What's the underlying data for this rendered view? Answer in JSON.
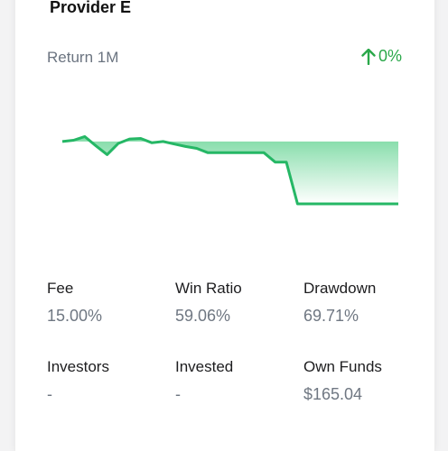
{
  "provider": {
    "name": "Provider E"
  },
  "return": {
    "label": "Return 1M",
    "value": "0%",
    "direction_icon": "arrow-up-icon",
    "color": "#2aa84a"
  },
  "chart_data": {
    "type": "area",
    "x": [
      0,
      1,
      2,
      3,
      4,
      5,
      6,
      7,
      8,
      9,
      10,
      11,
      12,
      13,
      14,
      15,
      16,
      17,
      18,
      19,
      20,
      21,
      22,
      23,
      24,
      25,
      26,
      27,
      28,
      29,
      30
    ],
    "y": [
      1.0,
      1.02,
      1.08,
      0.93,
      0.79,
      0.97,
      1.04,
      1.05,
      0.98,
      1.0,
      0.96,
      0.92,
      0.89,
      0.82,
      0.82,
      0.82,
      0.82,
      0.82,
      0.82,
      0.67,
      0.67,
      0.0,
      0.0,
      0.0,
      0.0,
      0.0,
      0.0,
      0.0,
      0.0,
      0.0,
      0.0
    ],
    "ylim": [
      0,
      1.1
    ],
    "line_color": "#25b765",
    "fill_top_color": "#79d9a1",
    "fill_bottom_color": "#ffffff"
  },
  "stats": [
    {
      "label": "Fee",
      "value": "15.00%"
    },
    {
      "label": "Win Ratio",
      "value": "59.06%"
    },
    {
      "label": "Drawdown",
      "value": "69.71%"
    },
    {
      "label": "Investors",
      "value": "-"
    },
    {
      "label": "Invested",
      "value": "-"
    },
    {
      "label": "Own Funds",
      "value": "$165.04"
    }
  ]
}
